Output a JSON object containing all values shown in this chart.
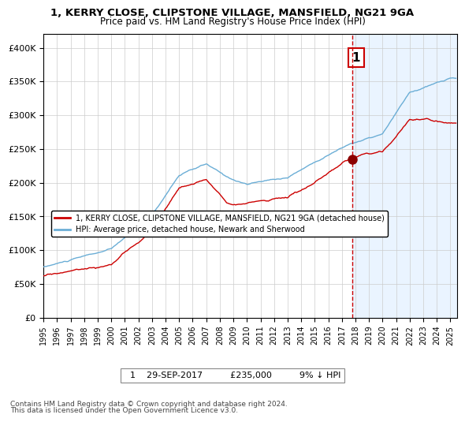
{
  "title1": "1, KERRY CLOSE, CLIPSTONE VILLAGE, MANSFIELD, NG21 9GA",
  "title2": "Price paid vs. HM Land Registry's House Price Index (HPI)",
  "legend1": "1, KERRY CLOSE, CLIPSTONE VILLAGE, MANSFIELD, NG21 9GA (detached house)",
  "legend2": "HPI: Average price, detached house, Newark and Sherwood",
  "sale_date": "29-SEP-2017",
  "sale_price": 235000,
  "sale_label": "9% ↓ HPI",
  "annotation_text": "1",
  "footnote1": "Contains HM Land Registry data © Crown copyright and database right 2024.",
  "footnote2": "This data is licensed under the Open Government Licence v3.0.",
  "hpi_color": "#6baed6",
  "price_color": "#cc0000",
  "marker_color": "#8b0000",
  "bg_after_color": "#ddeeff",
  "vline_color": "#cc0000",
  "sale_year": 2017.75,
  "ylim": [
    0,
    420000
  ],
  "xlim_start": 1995,
  "xlim_end": 2025.5
}
